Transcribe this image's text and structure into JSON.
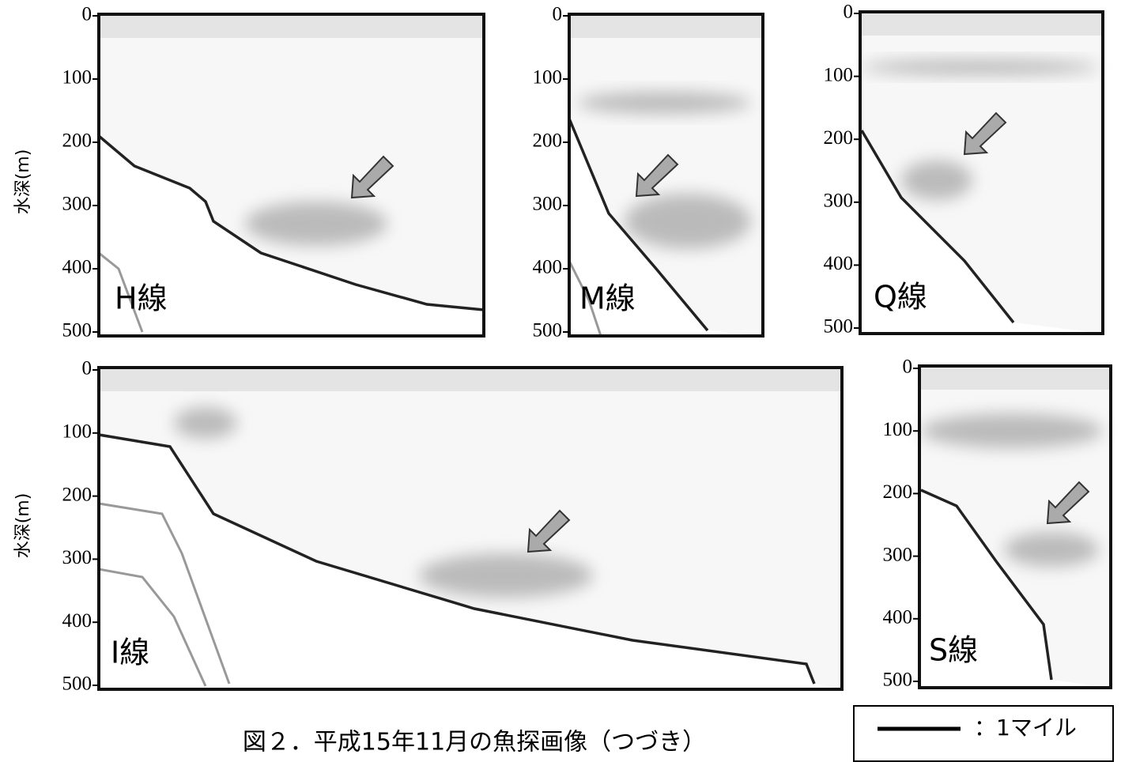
{
  "panels": [
    {
      "label": "H線",
      "ylim": [
        0,
        500
      ],
      "yticks": [
        0,
        100,
        200,
        300,
        400,
        500
      ]
    },
    {
      "label": "M線",
      "ylim": [
        0,
        500
      ],
      "yticks": [
        0,
        100,
        200,
        300,
        400,
        500
      ]
    },
    {
      "label": "Q線",
      "ylim": [
        0,
        500
      ],
      "yticks": [
        0,
        100,
        200,
        300,
        400,
        500
      ]
    },
    {
      "label": "I線",
      "ylim": [
        0,
        500
      ],
      "yticks": [
        0,
        100,
        200,
        300,
        400,
        500
      ]
    },
    {
      "label": "S線",
      "ylim": [
        0,
        500
      ],
      "yticks": [
        0,
        100,
        200,
        300,
        400,
        500
      ]
    }
  ],
  "ylabels": [
    "水深(m)",
    "水深(m)"
  ],
  "caption": "図２．平成15年11月の魚探画像（つづき）",
  "scale_label": "：1マイル"
}
